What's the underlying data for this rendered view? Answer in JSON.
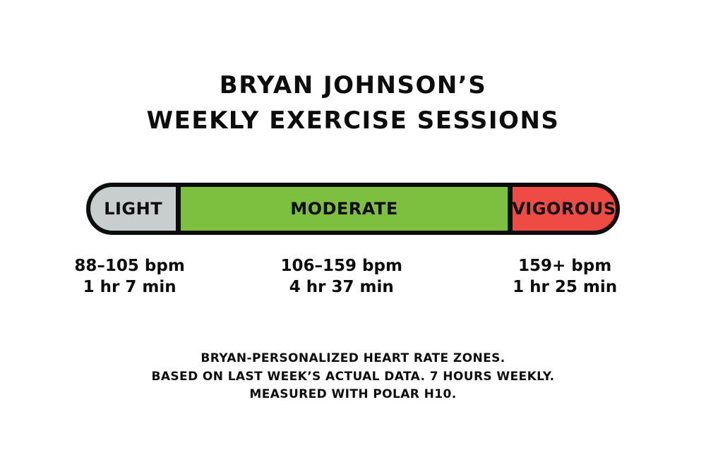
{
  "title": {
    "line1": "BRYAN JOHNSON’S",
    "line2": "WEEKLY EXERCISE SESSIONS"
  },
  "zones": [
    {
      "label": "LIGHT",
      "bpm": "88–105 bpm",
      "duration": "1 hr 7 min",
      "color": "#c7cecd",
      "width_pct": 16.3
    },
    {
      "label": "MODERATE",
      "bpm": "106–159 bpm",
      "duration": "4 hr 37 min",
      "color": "#7dbf3e",
      "width_pct": 63.1
    },
    {
      "label": "VIGOROUS",
      "bpm": "159+ bpm",
      "duration": "1 hr 25 min",
      "color": "#ee4b44",
      "width_pct": 20.6
    }
  ],
  "caption": {
    "lines": [
      "BRYAN-PERSONALIZED HEART RATE ZONES.",
      "BASED ON LAST WEEK’S ACTUAL DATA. 7 HOURS WEEKLY.",
      "MEASURED WITH POLAR H10."
    ]
  },
  "colors": {
    "outline": "#0d0d0d",
    "background": "#ffffff",
    "light_zone": "#c7cecd",
    "moderate_zone": "#7dbf3e",
    "vigorous_zone": "#ee4b44"
  },
  "chart_data": {
    "type": "bar",
    "subtype": "horizontal-stacked-pill",
    "title": "BRYAN JOHNSON’S WEEKLY EXERCISE SESSIONS",
    "categories": [
      "LIGHT",
      "MODERATE",
      "VIGOROUS"
    ],
    "series": [
      {
        "name": "Heart rate range (bpm)",
        "values": [
          "88–105",
          "106–159",
          "159+"
        ]
      },
      {
        "name": "Weekly duration (label)",
        "values": [
          "1 hr 7 min",
          "4 hr 37 min",
          "1 hr 25 min"
        ]
      },
      {
        "name": "Weekly duration (minutes)",
        "values": [
          67,
          277,
          85
        ]
      }
    ],
    "segment_width_pct": [
      16.3,
      63.1,
      20.6
    ],
    "segment_colors": [
      "#c7cecd",
      "#7dbf3e",
      "#ee4b44"
    ],
    "legend_position": "none",
    "grid": false,
    "annotations": [
      "BRYAN-PERSONALIZED HEART RATE ZONES.",
      "BASED ON LAST WEEK’S ACTUAL DATA. 7 HOURS WEEKLY.",
      "MEASURED WITH POLAR H10."
    ]
  }
}
